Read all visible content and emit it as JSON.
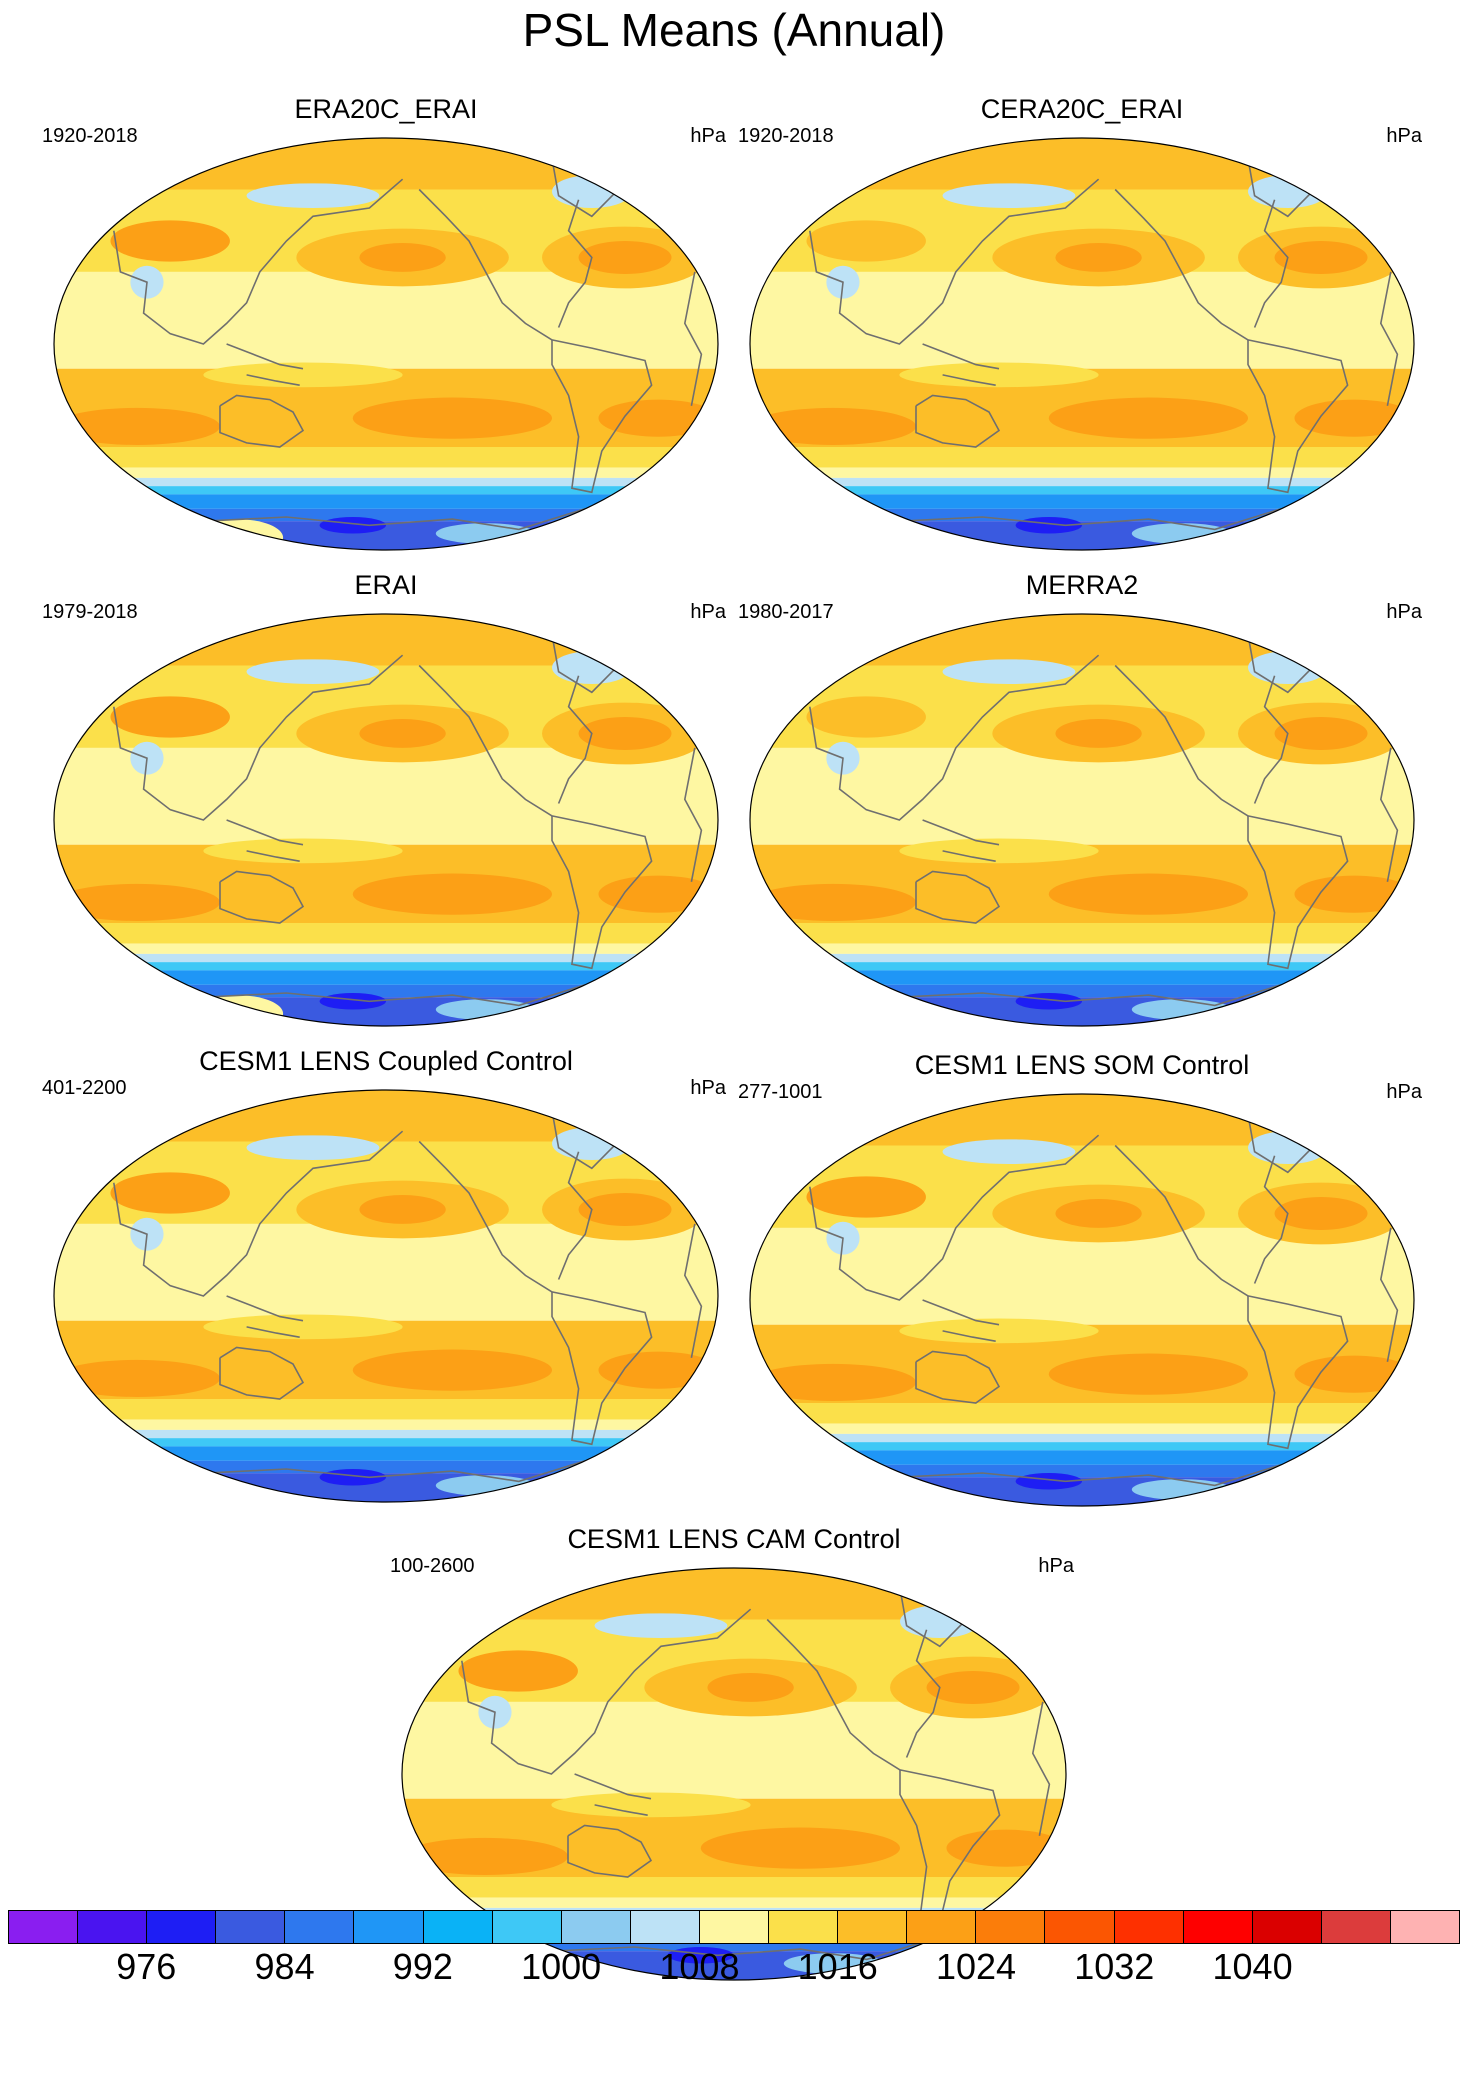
{
  "title": "PSL Means (Annual)",
  "panels": [
    {
      "title": "ERA20C_ERAI",
      "years": "1920-2018",
      "units": "hPa",
      "variant": 0
    },
    {
      "title": "CERA20C_ERAI",
      "years": "1920-2018",
      "units": "hPa",
      "variant": 1
    },
    {
      "title": "ERAI",
      "years": "1979-2018",
      "units": "hPa",
      "variant": 0
    },
    {
      "title": "MERRA2",
      "years": "1980-2017",
      "units": "hPa",
      "variant": 1
    },
    {
      "title": "CESM1 LENS Coupled Control",
      "years": "401-2200",
      "units": "hPa",
      "variant": 2
    },
    {
      "title": "CESM1 LENS SOM Control",
      "years": "277-1001",
      "units": "hPa",
      "variant": 2
    },
    {
      "title": "CESM1 LENS CAM Control",
      "years": "100-2600",
      "units": "hPa",
      "variant": 3
    }
  ],
  "colorbar": {
    "colors": [
      "#8a1ef0",
      "#4a14f0",
      "#1e1ef4",
      "#3a5ae0",
      "#2e78ee",
      "#1f96f6",
      "#0ab2f6",
      "#3ec8f6",
      "#8ccbf0",
      "#bde2f6",
      "#fef7a2",
      "#fbe04a",
      "#fcbe28",
      "#fca016",
      "#fb7d0a",
      "#fb5602",
      "#fe3000",
      "#fe0000",
      "#da0000",
      "#dc3c3c",
      "#feb2b2"
    ],
    "labels": [
      "976",
      "984",
      "992",
      "1000",
      "1008",
      "1016",
      "1024",
      "1032",
      "1040"
    ]
  }
}
